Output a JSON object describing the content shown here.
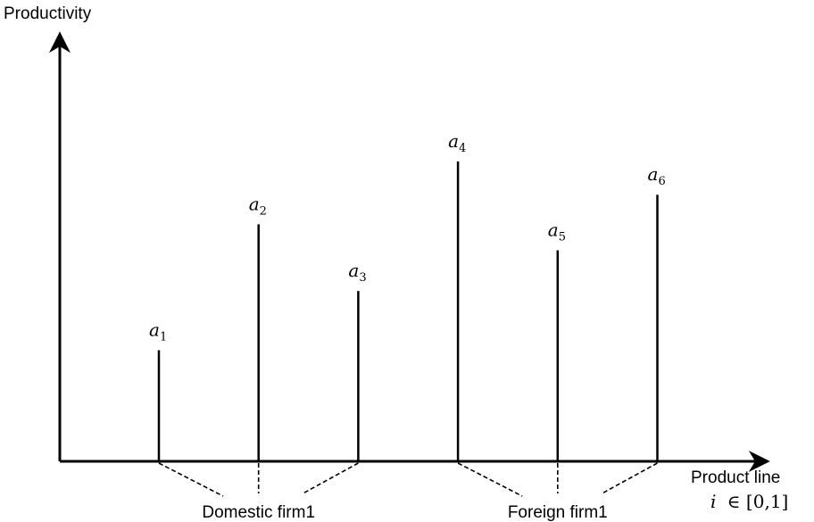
{
  "axes": {
    "y_label": "Productivity",
    "x_label": "Product line",
    "x_domain": {
      "var": "i",
      "set": "∈ [0,1]"
    }
  },
  "products": [
    {
      "symbol": "a",
      "sub": "1",
      "productivity": 0.3
    },
    {
      "symbol": "a",
      "sub": "2",
      "productivity": 0.64
    },
    {
      "symbol": "a",
      "sub": "3",
      "productivity": 0.46
    },
    {
      "symbol": "a",
      "sub": "4",
      "productivity": 0.81
    },
    {
      "symbol": "a",
      "sub": "5",
      "productivity": 0.57
    },
    {
      "symbol": "a",
      "sub": "6",
      "productivity": 0.72
    }
  ],
  "firms": [
    {
      "label": "Domestic firm1",
      "products": [
        0,
        1,
        2
      ]
    },
    {
      "label": "Foreign firm1",
      "products": [
        3,
        4,
        5
      ]
    }
  ]
}
